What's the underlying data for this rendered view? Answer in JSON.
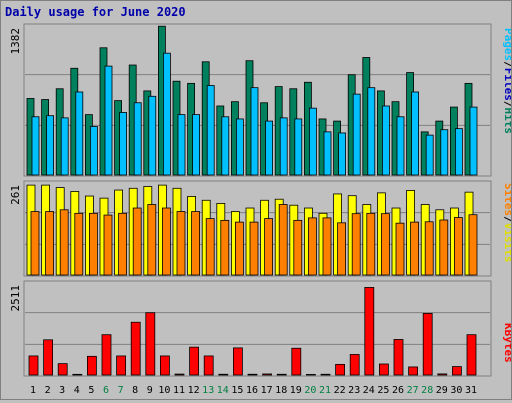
{
  "chart_data": {
    "type": "bar",
    "title": "Daily usage for June 2020",
    "days": [
      "1",
      "2",
      "3",
      "4",
      "5",
      "6",
      "7",
      "8",
      "9",
      "10",
      "11",
      "12",
      "13",
      "14",
      "15",
      "16",
      "17",
      "18",
      "19",
      "20",
      "21",
      "22",
      "23",
      "24",
      "25",
      "26",
      "27",
      "28",
      "29",
      "30",
      "31"
    ],
    "weekend_days": [
      "6",
      "7",
      "13",
      "14",
      "20",
      "21",
      "27",
      "28"
    ],
    "colors": {
      "hits": "#00805c",
      "files": "#00c0ff",
      "pages": "#0000c0",
      "visits": "#ffff00",
      "sites": "#ff8000",
      "kbytes": "#ff0000",
      "weekday_label": "#000000",
      "weekend_label": "#008040",
      "title": "#0000aa"
    },
    "panels": {
      "top": {
        "ymax_label": "1382",
        "ymax": 1382,
        "legend": {
          "pages": "Pages",
          "sep1": "/",
          "files": "Files",
          "sep2": "/",
          "hits": "Hits"
        },
        "series": {
          "hits": [
            710,
            700,
            800,
            990,
            560,
            1180,
            690,
            1020,
            780,
            1380,
            870,
            850,
            1050,
            640,
            680,
            1060,
            670,
            820,
            800,
            860,
            520,
            500,
            930,
            1090,
            780,
            680,
            950,
            400,
            500,
            630,
            850
          ],
          "files": [
            540,
            550,
            530,
            770,
            450,
            1010,
            580,
            670,
            730,
            1130,
            560,
            560,
            830,
            540,
            520,
            810,
            500,
            530,
            520,
            620,
            400,
            390,
            750,
            810,
            640,
            540,
            770,
            370,
            420,
            430,
            630
          ],
          "pages": [
            0,
            0,
            0,
            0,
            0,
            0,
            0,
            0,
            0,
            0,
            0,
            0,
            0,
            0,
            0,
            0,
            0,
            0,
            0,
            0,
            0,
            0,
            0,
            0,
            0,
            0,
            0,
            0,
            0,
            0,
            0
          ]
        }
      },
      "middle": {
        "ymax_label": "261",
        "ymax": 261,
        "legend": {
          "sites": "Sites",
          "sep": "/",
          "visits": "Visits"
        },
        "series": {
          "visits": [
            255,
            255,
            248,
            237,
            224,
            218,
            241,
            246,
            251,
            255,
            246,
            223,
            212,
            203,
            180,
            190,
            212,
            215,
            198,
            190,
            175,
            230,
            225,
            200,
            233,
            190,
            240,
            200,
            185,
            190,
            235
          ],
          "sites": [
            180,
            180,
            185,
            175,
            175,
            170,
            175,
            190,
            200,
            190,
            180,
            180,
            160,
            155,
            150,
            150,
            160,
            200,
            155,
            162,
            162,
            148,
            174,
            175,
            174,
            147,
            150,
            151,
            156,
            163,
            171
          ]
        }
      },
      "bottom": {
        "ymax_label": "2511",
        "ymax": 2511,
        "legend": {
          "kbytes": "KBytes"
        },
        "series": {
          "kbytes": [
            520,
            960,
            310,
            18,
            510,
            1100,
            520,
            1440,
            1700,
            520,
            25,
            760,
            520,
            20,
            740,
            20,
            28,
            20,
            730,
            15,
            20,
            290,
            560,
            2390,
            300,
            970,
            220,
            1680,
            30,
            230,
            1100
          ]
        }
      }
    }
  }
}
